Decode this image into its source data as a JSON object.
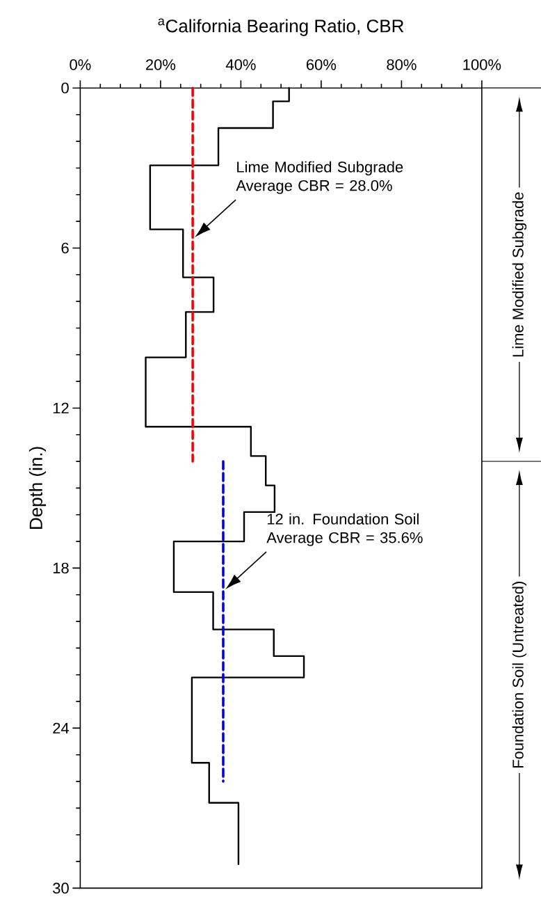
{
  "chart_data": {
    "type": "line",
    "xlabel": "$^{a}$California Bearing Ratio, CBR",
    "ylabel": "Depth (in.)",
    "xlim": [
      0,
      100
    ],
    "xticks": [
      {
        "value": 0,
        "label": "0%"
      },
      {
        "value": 20,
        "label": "20%"
      },
      {
        "value": 40,
        "label": "40%"
      },
      {
        "value": 60,
        "label": "60%"
      },
      {
        "value": 80,
        "label": "80%"
      },
      {
        "value": 100,
        "label": "100%"
      }
    ],
    "ylim": [
      30,
      0
    ],
    "yticks": [
      0,
      6,
      12,
      18,
      24,
      30
    ],
    "marker": "none",
    "grid": false,
    "series": [
      {
        "color": "#000000",
        "line_style": "solid",
        "x": [
          52.0,
          52.0,
          48.0,
          48.0,
          34.4,
          34.4,
          17.4,
          17.4,
          25.6,
          25.6,
          33.2,
          33.2,
          26.3,
          26.3,
          16.3,
          16.3,
          42.5,
          42.5,
          46.2,
          46.2,
          48.4,
          48.4,
          40.8,
          40.8,
          23.3,
          23.3,
          33.1,
          33.1,
          48.2,
          48.2,
          55.7,
          55.7,
          27.8,
          27.8,
          32.1,
          32.1,
          39.4,
          39.4
        ],
        "values": [
          0,
          0.5,
          0.5,
          1.5,
          1.5,
          2.9,
          2.9,
          5.3,
          5.3,
          7.1,
          7.1,
          8.4,
          8.4,
          10.1,
          10.1,
          12.7,
          12.7,
          13.8,
          13.8,
          14.9,
          14.9,
          15.9,
          15.9,
          17.0,
          17.0,
          18.9,
          18.9,
          20.3,
          20.3,
          21.3,
          21.3,
          22.1,
          22.1,
          25.3,
          25.3,
          26.8,
          26.8,
          29.1
        ]
      },
      {
        "color": "#ff0000",
        "line_style": "dashed",
        "x": [
          28.0,
          28.0
        ],
        "values": [
          0,
          14.0
        ]
      },
      {
        "color": "#0000ff",
        "line_style": "dashed",
        "x": [
          35.6,
          35.6
        ],
        "values": [
          14.0,
          26.0
        ]
      }
    ],
    "annotations": [
      "Lime Modified Subgrade Average CBR = 28.0%",
      "12 in. Foundation Soil Average CBR = 35.6%",
      "Lime Modified Subgrade",
      "Foundation Soil (Untreated)"
    ]
  }
}
